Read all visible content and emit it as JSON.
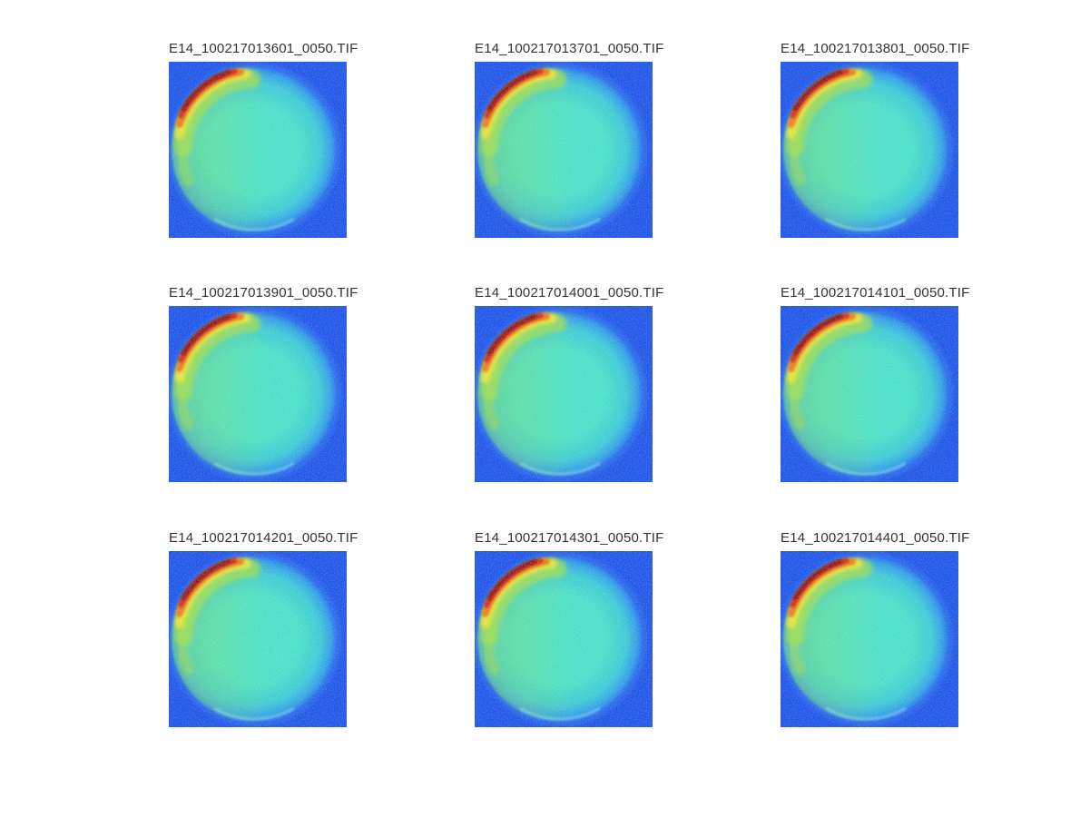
{
  "figure": {
    "background": "#ffffff",
    "grid": {
      "rows": 3,
      "cols": 3
    },
    "colormap_name": "jet",
    "panels": [
      {
        "title": "E14_100217013601_0050.TIF"
      },
      {
        "title": "E14_100217013701_0050.TIF"
      },
      {
        "title": "E14_100217013801_0050.TIF"
      },
      {
        "title": "E14_100217013901_0050.TIF"
      },
      {
        "title": "E14_100217014001_0050.TIF"
      },
      {
        "title": "E14_100217014101_0050.TIF"
      },
      {
        "title": "E14_100217014201_0050.TIF"
      },
      {
        "title": "E14_100217014301_0050.TIF"
      },
      {
        "title": "E14_100217014401_0050.TIF"
      }
    ],
    "colors": {
      "background_blue": "#1558ef",
      "halo_blue": "#3f86f4",
      "disk_cyan": "#4be7cf",
      "disk_mid": "#3ccfdc",
      "disk_edge": "#2fa6ee",
      "disk_rim": "#2377f2",
      "disk_green": "#7fe27d",
      "glow_green": "#a6e455",
      "hot_yellow": "#eeea3a",
      "hot_orange": "#f28418",
      "hot_red": "#d62e0a",
      "hot_dark_red": "#8f0b00",
      "rim_light": "#a5f4ec",
      "title_text": "#333333"
    }
  },
  "chart_data": {
    "type": "heatmap",
    "layout": "3x3 image montage",
    "colormap": "jet",
    "panel_titles": [
      "E14_100217013601_0050.TIF",
      "E14_100217013701_0050.TIF",
      "E14_100217013801_0050.TIF",
      "E14_100217013901_0050.TIF",
      "E14_100217014001_0050.TIF",
      "E14_100217014101_0050.TIF",
      "E14_100217014201_0050.TIF",
      "E14_100217014301_0050.TIF",
      "E14_100217014401_0050.TIF"
    ],
    "description": "Nine pseudocolor frames of the same circular sample: blue noisy background, cyan-green disk filling the frame, red/orange hotspot along the upper-left rim with a yellow-green glow extending down the left edge."
  }
}
